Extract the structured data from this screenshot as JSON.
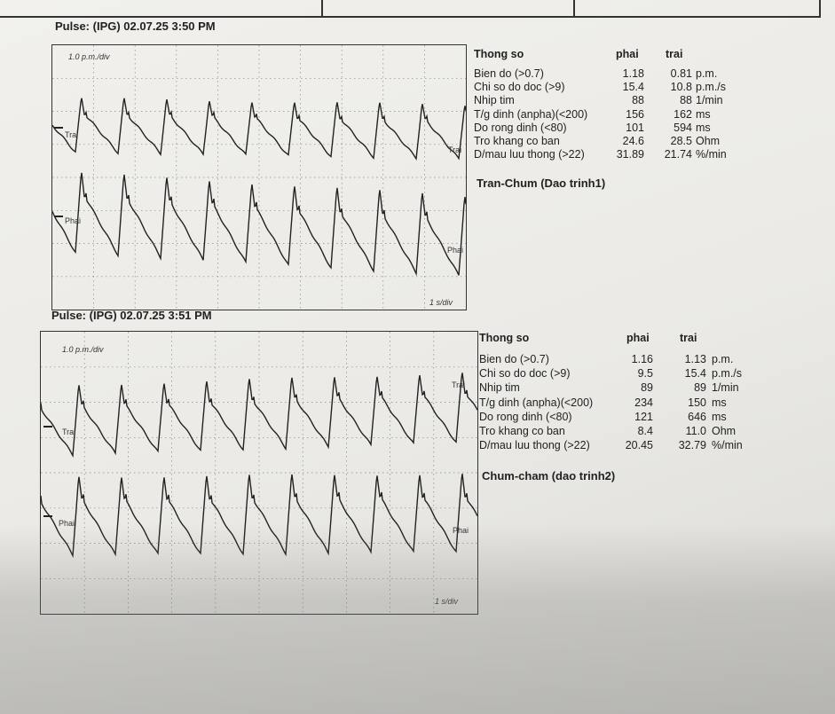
{
  "records": [
    {
      "heading": "Pulse:  (IPG) 02.07.25 3:50 PM",
      "scale_label": "1.0 p.m./div",
      "time_label": "1 s/div",
      "trace_top_label": "Trai",
      "trace_top_end_label": "Trai",
      "trace_bottom_label": "Phai",
      "trace_bottom_end_label": "Phai",
      "table": {
        "header": {
          "name": "Thong so",
          "col1": "phai",
          "col2": "trai"
        },
        "rows": [
          {
            "name": "Bien do (>0.7)",
            "v1": "1.18",
            "v2": "0.81",
            "unit": "p.m."
          },
          {
            "name": "Chi so do doc (>9)",
            "v1": "15.4",
            "v2": "10.8",
            "unit": "p.m./s"
          },
          {
            "name": "Nhip tim",
            "v1": "88",
            "v2": "88",
            "unit": "1/min"
          },
          {
            "name": "T/g dinh (anpha)(<200)",
            "v1": "156",
            "v2": "162",
            "unit": "ms"
          },
          {
            "name": "Do rong dinh (<80)",
            "v1": "101",
            "v2": "594",
            "unit": "ms"
          },
          {
            "name": "Tro khang co ban",
            "v1": "24.6",
            "v2": "28.5",
            "unit": "Ohm"
          },
          {
            "name": "D/mau luu thong (>22)",
            "v1": "31.89",
            "v2": "21.74",
            "unit": "%/min"
          }
        ]
      },
      "diagnosis": "Tran-Chum (Dao trinh1)"
    },
    {
      "heading": "Pulse:  (IPG) 02.07.25 3:51 PM",
      "scale_label": "1.0 p.m./div",
      "time_label": "1 s/div",
      "trace_top_label": "Trai",
      "trace_top_end_label": "Trai",
      "trace_bottom_label": "Phai",
      "trace_bottom_end_label": "Phai",
      "table": {
        "header": {
          "name": "Thong so",
          "col1": "phai",
          "col2": "trai"
        },
        "rows": [
          {
            "name": "Bien do (>0.7)",
            "v1": "1.16",
            "v2": "1.13",
            "unit": "p.m."
          },
          {
            "name": "Chi so do doc (>9)",
            "v1": "9.5",
            "v2": "15.4",
            "unit": "p.m./s"
          },
          {
            "name": "Nhip tim",
            "v1": "89",
            "v2": "89",
            "unit": "1/min"
          },
          {
            "name": "T/g dinh (anpha)(<200)",
            "v1": "234",
            "v2": "150",
            "unit": "ms"
          },
          {
            "name": "Do rong dinh (<80)",
            "v1": "121",
            "v2": "646",
            "unit": "ms"
          },
          {
            "name": "Tro khang co ban",
            "v1": "8.4",
            "v2": "11.0",
            "unit": "Ohm"
          },
          {
            "name": "D/mau luu thong (>22)",
            "v1": "20.45",
            "v2": "32.79",
            "unit": "%/min"
          }
        ]
      },
      "diagnosis": "Chum-cham (dao trinh2)"
    }
  ]
}
